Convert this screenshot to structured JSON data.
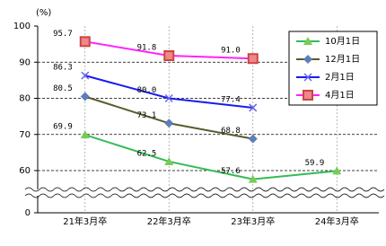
{
  "chart_data": {
    "type": "line",
    "y_unit_label": "(%)",
    "categories": [
      "21年3月卒",
      "22年3月卒",
      "23年3月卒",
      "24年3月卒"
    ],
    "series": [
      {
        "name": "10月1日",
        "color": "#33bb55",
        "marker": "triangle",
        "marker_color": "#77cc55",
        "values": [
          69.9,
          62.5,
          57.6,
          59.9
        ],
        "value_labels": [
          "69.9",
          "62.5",
          "57.6",
          "59.9"
        ]
      },
      {
        "name": "12月1日",
        "color": "#5a5a30",
        "marker": "diamond",
        "marker_color": "#5b7fb8",
        "values": [
          80.5,
          73.1,
          68.8,
          null
        ],
        "value_labels": [
          "80.5",
          "73.1",
          "68.8",
          null
        ]
      },
      {
        "name": "2月1日",
        "color": "#1a1aee",
        "marker": "x",
        "marker_color": "#6666ee",
        "values": [
          86.3,
          80.0,
          77.4,
          null
        ],
        "value_labels": [
          "86.3",
          "80.0",
          "77.4",
          null
        ]
      },
      {
        "name": "4月1日",
        "color": "#ff22ff",
        "marker": "square",
        "marker_color": "#cc4444",
        "values": [
          95.7,
          91.8,
          91.0,
          null
        ],
        "value_labels": [
          "95.7",
          "91.8",
          "91.0",
          null
        ]
      }
    ],
    "ylim": [
      0,
      100
    ],
    "yticks": [
      0,
      60,
      70,
      80,
      90,
      100
    ],
    "axis_break": true,
    "grid": true
  }
}
